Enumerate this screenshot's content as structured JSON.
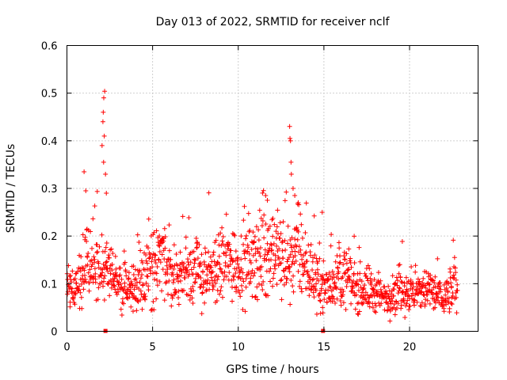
{
  "chart_data": {
    "type": "scatter",
    "title": "Day 013 of 2022, SRMTID for receiver nclf",
    "xlabel": "GPS time / hours",
    "ylabel": "SRMTID / TECUs",
    "xlim": [
      0,
      24
    ],
    "ylim": [
      0,
      0.6
    ],
    "xticks": [
      0,
      5,
      10,
      15,
      20
    ],
    "xtick_labels": [
      "0",
      "5",
      "10",
      "15",
      "20"
    ],
    "yticks": [
      0,
      0.1,
      0.2,
      0.3,
      0.4,
      0.5,
      0.6
    ],
    "ytick_labels": [
      "0",
      "0.1",
      "0.2",
      "0.3",
      "0.4",
      "0.5",
      "0.6"
    ],
    "grid": true,
    "marker": "+",
    "marker_color": "#ff0000",
    "x_range_data": [
      0,
      22.8
    ],
    "series": [
      {
        "name": "SRMTID",
        "description_profile": [
          {
            "x": 0.0,
            "y": 0.1
          },
          {
            "x": 0.5,
            "y": 0.09
          },
          {
            "x": 1.0,
            "y": 0.14
          },
          {
            "x": 1.5,
            "y": 0.15
          },
          {
            "x": 2.0,
            "y": 0.13
          },
          {
            "x": 2.5,
            "y": 0.11
          },
          {
            "x": 3.0,
            "y": 0.1
          },
          {
            "x": 3.5,
            "y": 0.09
          },
          {
            "x": 4.0,
            "y": 0.09
          },
          {
            "x": 4.5,
            "y": 0.12
          },
          {
            "x": 5.0,
            "y": 0.14
          },
          {
            "x": 5.5,
            "y": 0.15
          },
          {
            "x": 6.0,
            "y": 0.13
          },
          {
            "x": 6.5,
            "y": 0.11
          },
          {
            "x": 7.0,
            "y": 0.13
          },
          {
            "x": 7.5,
            "y": 0.13
          },
          {
            "x": 8.0,
            "y": 0.12
          },
          {
            "x": 8.5,
            "y": 0.12
          },
          {
            "x": 9.0,
            "y": 0.14
          },
          {
            "x": 9.5,
            "y": 0.15
          },
          {
            "x": 10.0,
            "y": 0.14
          },
          {
            "x": 10.5,
            "y": 0.14
          },
          {
            "x": 11.0,
            "y": 0.15
          },
          {
            "x": 11.5,
            "y": 0.17
          },
          {
            "x": 12.0,
            "y": 0.16
          },
          {
            "x": 12.5,
            "y": 0.16
          },
          {
            "x": 13.0,
            "y": 0.15
          },
          {
            "x": 13.5,
            "y": 0.17
          },
          {
            "x": 14.0,
            "y": 0.13
          },
          {
            "x": 14.5,
            "y": 0.11
          },
          {
            "x": 15.0,
            "y": 0.09
          },
          {
            "x": 15.5,
            "y": 0.1
          },
          {
            "x": 16.0,
            "y": 0.12
          },
          {
            "x": 16.5,
            "y": 0.11
          },
          {
            "x": 17.0,
            "y": 0.09
          },
          {
            "x": 17.5,
            "y": 0.09
          },
          {
            "x": 18.0,
            "y": 0.08
          },
          {
            "x": 18.5,
            "y": 0.07
          },
          {
            "x": 19.0,
            "y": 0.08
          },
          {
            "x": 19.5,
            "y": 0.09
          },
          {
            "x": 20.0,
            "y": 0.08
          },
          {
            "x": 20.5,
            "y": 0.08
          },
          {
            "x": 21.0,
            "y": 0.09
          },
          {
            "x": 21.5,
            "y": 0.08
          },
          {
            "x": 22.0,
            "y": 0.07
          },
          {
            "x": 22.5,
            "y": 0.09
          },
          {
            "x": 22.8,
            "y": 0.1
          }
        ],
        "peaks": [
          {
            "x": 1.0,
            "y": 0.335
          },
          {
            "x": 1.1,
            "y": 0.295
          },
          {
            "x": 2.05,
            "y": 0.39
          },
          {
            "x": 2.1,
            "y": 0.44
          },
          {
            "x": 2.12,
            "y": 0.46
          },
          {
            "x": 2.15,
            "y": 0.49
          },
          {
            "x": 2.2,
            "y": 0.504
          },
          {
            "x": 2.18,
            "y": 0.41
          },
          {
            "x": 2.14,
            "y": 0.355
          },
          {
            "x": 2.25,
            "y": 0.33
          },
          {
            "x": 2.3,
            "y": 0.29
          },
          {
            "x": 11.6,
            "y": 0.285
          },
          {
            "x": 11.7,
            "y": 0.275
          },
          {
            "x": 13.0,
            "y": 0.43
          },
          {
            "x": 13.02,
            "y": 0.405
          },
          {
            "x": 13.05,
            "y": 0.4
          },
          {
            "x": 13.08,
            "y": 0.355
          },
          {
            "x": 13.1,
            "y": 0.33
          },
          {
            "x": 13.2,
            "y": 0.3
          },
          {
            "x": 13.3,
            "y": 0.285
          },
          {
            "x": 13.5,
            "y": 0.27
          },
          {
            "x": 14.9,
            "y": 0.25
          }
        ],
        "zero_points": [
          {
            "x": 2.25,
            "y": 0.0
          },
          {
            "x": 14.95,
            "y": 0.0
          }
        ]
      }
    ]
  }
}
